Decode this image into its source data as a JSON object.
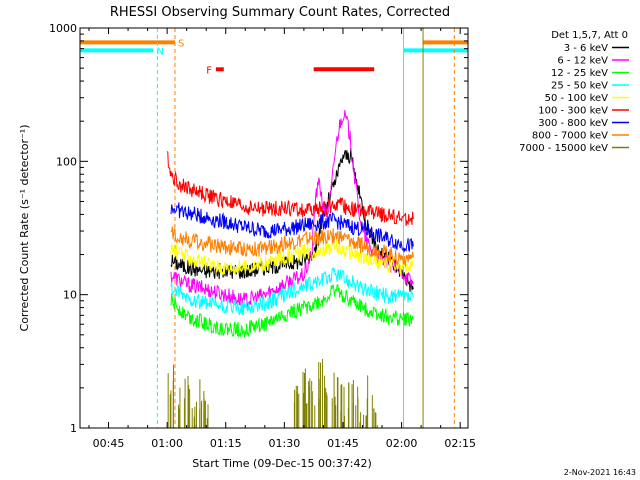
{
  "chart_data": {
    "type": "line",
    "title": "RHESSI Observing Summary Count Rates, Corrected",
    "xlabel": "Start Time (09-Dec-15 00:37:42)",
    "ylabel": "Corrected Count Rate (s⁻¹ detector⁻¹)",
    "yscale": "log",
    "ylim": [
      1,
      1000
    ],
    "xlim": [
      "00:37:42",
      "02:17:00"
    ],
    "x_tick_labels": [
      "00:45",
      "01:00",
      "01:15",
      "01:30",
      "01:45",
      "02:00",
      "02:15"
    ],
    "x_ticks_min": [
      45,
      60,
      75,
      90,
      105,
      120,
      135
    ],
    "y_tick_labels": [
      "1",
      "10",
      "100",
      "1000"
    ],
    "y_ticks": [
      1,
      10,
      100,
      1000
    ],
    "legend_title": "Det 1,5,7, Att 0",
    "legend_position": "right",
    "series": [
      {
        "name": "3 - 6 keV",
        "color": "#000000",
        "points": [
          [
            61,
            18
          ],
          [
            65,
            16
          ],
          [
            70,
            15
          ],
          [
            75,
            15
          ],
          [
            80,
            15
          ],
          [
            85,
            16
          ],
          [
            90,
            17
          ],
          [
            95,
            18
          ],
          [
            98,
            22
          ],
          [
            100,
            40
          ],
          [
            103,
            70
          ],
          [
            105,
            110
          ],
          [
            107,
            110
          ],
          [
            109,
            60
          ],
          [
            111,
            35
          ],
          [
            113,
            25
          ],
          [
            115,
            20
          ],
          [
            117,
            18
          ],
          [
            120,
            15
          ],
          [
            123,
            11
          ]
        ]
      },
      {
        "name": "6 - 12 keV",
        "color": "#ff00ff",
        "points": [
          [
            61,
            14
          ],
          [
            65,
            12
          ],
          [
            70,
            11
          ],
          [
            75,
            10
          ],
          [
            80,
            9
          ],
          [
            85,
            10
          ],
          [
            90,
            12
          ],
          [
            95,
            14
          ],
          [
            97,
            20
          ],
          [
            98,
            55
          ],
          [
            99,
            70
          ],
          [
            100,
            45
          ],
          [
            101,
            40
          ],
          [
            102,
            60
          ],
          [
            103,
            120
          ],
          [
            104,
            180
          ],
          [
            105,
            230
          ],
          [
            106,
            200
          ],
          [
            107,
            140
          ],
          [
            108,
            75
          ],
          [
            109,
            45
          ],
          [
            110,
            30
          ],
          [
            112,
            22
          ],
          [
            115,
            18
          ],
          [
            120,
            15
          ],
          [
            123,
            12
          ]
        ]
      },
      {
        "name": "12 - 25 keV",
        "color": "#00ff00",
        "points": [
          [
            61,
            9
          ],
          [
            65,
            7
          ],
          [
            70,
            6
          ],
          [
            75,
            5.5
          ],
          [
            80,
            5.5
          ],
          [
            85,
            6
          ],
          [
            90,
            7
          ],
          [
            95,
            8
          ],
          [
            100,
            9
          ],
          [
            103,
            11
          ],
          [
            105,
            10
          ],
          [
            107,
            9
          ],
          [
            110,
            8
          ],
          [
            115,
            7
          ],
          [
            120,
            6.5
          ],
          [
            123,
            6.5
          ]
        ]
      },
      {
        "name": "25 - 50 keV",
        "color": "#00ffff",
        "points": [
          [
            61,
            11
          ],
          [
            65,
            9.5
          ],
          [
            70,
            8.5
          ],
          [
            75,
            8
          ],
          [
            80,
            8
          ],
          [
            85,
            8.5
          ],
          [
            90,
            10
          ],
          [
            95,
            11.5
          ],
          [
            100,
            13
          ],
          [
            103,
            14.5
          ],
          [
            106,
            13
          ],
          [
            110,
            11
          ],
          [
            115,
            10
          ],
          [
            120,
            9.5
          ],
          [
            123,
            9.5
          ]
        ]
      },
      {
        "name": "50 - 100 keV",
        "color": "#ffff00",
        "points": [
          [
            61,
            22
          ],
          [
            65,
            19
          ],
          [
            70,
            17
          ],
          [
            75,
            16
          ],
          [
            80,
            16
          ],
          [
            85,
            17
          ],
          [
            90,
            19
          ],
          [
            95,
            21
          ],
          [
            100,
            22
          ],
          [
            103,
            23
          ],
          [
            106,
            21
          ],
          [
            110,
            19
          ],
          [
            115,
            17
          ],
          [
            120,
            16
          ],
          [
            123,
            16
          ]
        ]
      },
      {
        "name": "100 - 300 keV",
        "color": "#ff0000",
        "points": [
          [
            60,
            115
          ],
          [
            61,
            80
          ],
          [
            63,
            68
          ],
          [
            66,
            62
          ],
          [
            70,
            56
          ],
          [
            75,
            50
          ],
          [
            80,
            45
          ],
          [
            85,
            44
          ],
          [
            90,
            45
          ],
          [
            95,
            43
          ],
          [
            100,
            44
          ],
          [
            103,
            48
          ],
          [
            106,
            45
          ],
          [
            110,
            42
          ],
          [
            115,
            40
          ],
          [
            120,
            37
          ],
          [
            123,
            37
          ]
        ]
      },
      {
        "name": "300 - 800 keV",
        "color": "#0000ff",
        "points": [
          [
            61,
            45
          ],
          [
            65,
            41
          ],
          [
            70,
            38
          ],
          [
            75,
            35
          ],
          [
            80,
            32
          ],
          [
            85,
            30
          ],
          [
            90,
            31
          ],
          [
            95,
            33
          ],
          [
            100,
            35
          ],
          [
            103,
            36
          ],
          [
            106,
            33
          ],
          [
            110,
            31
          ],
          [
            115,
            27
          ],
          [
            120,
            24
          ],
          [
            123,
            23
          ]
        ]
      },
      {
        "name": "800 - 7000 keV",
        "color": "#ff8000",
        "points": [
          [
            61,
            29
          ],
          [
            65,
            26
          ],
          [
            70,
            24
          ],
          [
            75,
            23
          ],
          [
            80,
            22
          ],
          [
            85,
            22
          ],
          [
            90,
            24
          ],
          [
            95,
            26
          ],
          [
            100,
            27
          ],
          [
            103,
            28
          ],
          [
            106,
            26
          ],
          [
            110,
            23
          ],
          [
            115,
            21
          ],
          [
            120,
            19
          ],
          [
            123,
            19
          ]
        ]
      },
      {
        "name": "7000 - 15000 keV",
        "color": "#808000",
        "points": [
          [
            61,
            2.9
          ],
          [
            63,
            2.1
          ],
          [
            65,
            2.7
          ],
          [
            67,
            1.6
          ],
          [
            69,
            2.1
          ],
          [
            70,
            1.7
          ],
          [
            93,
            2.2
          ],
          [
            95,
            2.5
          ],
          [
            97,
            2.1
          ],
          [
            99,
            2.9
          ],
          [
            101,
            2.3
          ],
          [
            103,
            2.6
          ],
          [
            105,
            2.0
          ],
          [
            107,
            2.4
          ],
          [
            109,
            1.8
          ],
          [
            111,
            2.2
          ],
          [
            113,
            1.7
          ]
        ]
      }
    ],
    "flag_bars": [
      {
        "label": "S",
        "color": "#ff8000",
        "y_level": 780,
        "ranges": [
          [
            "00:37:42",
            "01:02:00"
          ],
          [
            "02:05:30",
            "02:17:00"
          ]
        ]
      },
      {
        "label": "N",
        "color": "#00ffff",
        "y_level": 680,
        "ranges": [
          [
            "00:37:42",
            "00:56:30"
          ],
          [
            "02:00:30",
            "02:17:00"
          ]
        ]
      },
      {
        "label": "F",
        "color": "#ff0000",
        "y_level": 490,
        "ranges": [
          [
            "01:12:30",
            "01:14:30"
          ],
          [
            "01:37:30",
            "01:53:00"
          ]
        ]
      }
    ],
    "vertical_lines": [
      {
        "time": "00:57:30",
        "color": "#00ffff",
        "style": "dashed"
      },
      {
        "time": "01:02:00",
        "color": "#ff8000",
        "style": "dashed"
      },
      {
        "time": "02:00:30",
        "color": "#00ffff",
        "style": "solid"
      },
      {
        "time": "02:05:30",
        "color": "#808000",
        "style": "solid"
      },
      {
        "time": "02:13:30",
        "color": "#ff8000",
        "style": "dashed"
      }
    ],
    "footer": "2-Nov-2021 16:43"
  }
}
